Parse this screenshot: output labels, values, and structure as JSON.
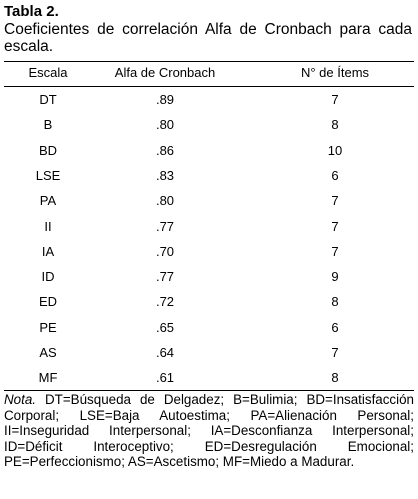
{
  "header": {
    "title": "Tabla 2.",
    "subtitle": "Coeficientes de correlación Alfa de Cronbach para cada escala."
  },
  "table": {
    "columns": [
      "Escala",
      "Alfa de Cronbach",
      "N° de Ítems"
    ],
    "rows": [
      [
        "DT",
        ".89",
        "7"
      ],
      [
        "B",
        ".80",
        "8"
      ],
      [
        "BD",
        ".86",
        "10"
      ],
      [
        "LSE",
        ".83",
        "6"
      ],
      [
        "PA",
        ".80",
        "7"
      ],
      [
        "II",
        ".77",
        "7"
      ],
      [
        "IA",
        ".70",
        "7"
      ],
      [
        "ID",
        ".77",
        "9"
      ],
      [
        "ED",
        ".72",
        "8"
      ],
      [
        "PE",
        ".65",
        "6"
      ],
      [
        "AS",
        ".64",
        "7"
      ],
      [
        "MF",
        ".61",
        "8"
      ]
    ]
  },
  "note": {
    "label": "Nota.",
    "text": "DT=Búsqueda de Delgadez; B=Bulimia; BD=Insatisfacción Corporal; LSE=Baja Autoestima; PA=Alienación Personal; II=Inseguridad Interpersonal; IA=Desconfianza Interpersonal; ID=Déficit Interoceptivo; ED=Desregulación Emocional; PE=Perfeccionismo; AS=Ascetismo; MF=Miedo a Madurar."
  }
}
